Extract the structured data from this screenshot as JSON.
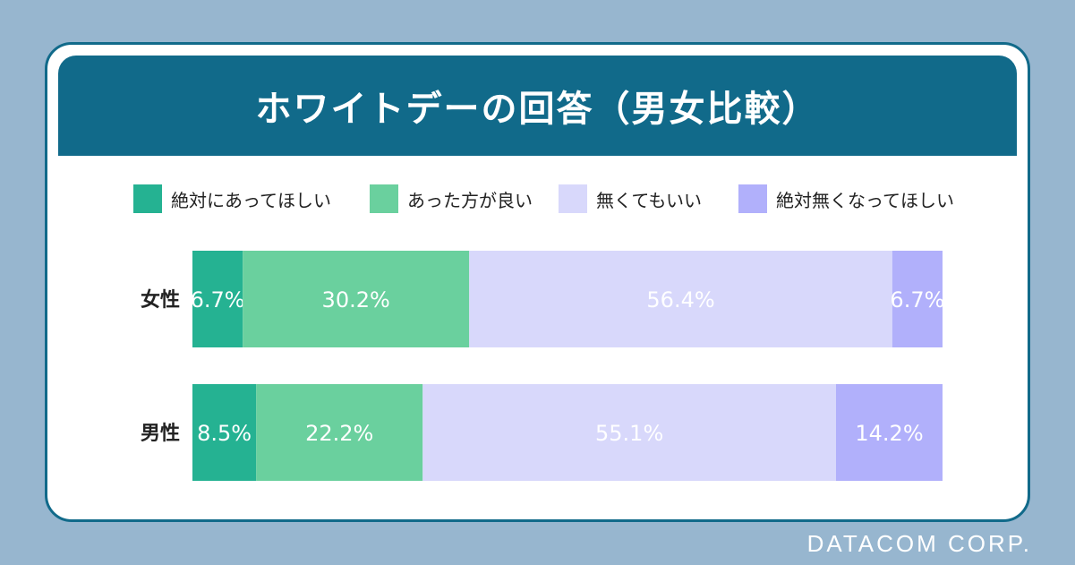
{
  "title": "ホワイトデーの回答（男女比較）",
  "footer": "DATACOM CORP.",
  "legend": [
    {
      "label": "絶対にあってほしい",
      "color": "#25b292"
    },
    {
      "label": "あった方が良い",
      "color": "#6ad09e"
    },
    {
      "label": "無くてもいい",
      "color": "#d8d8fb"
    },
    {
      "label": "絶対無くなってほしい",
      "color": "#b1b0fb"
    }
  ],
  "chart_data": {
    "type": "bar",
    "orientation": "horizontal",
    "stacked": true,
    "normalized": true,
    "categories": [
      "女性",
      "男性"
    ],
    "series": [
      {
        "name": "絶対にあってほしい",
        "values": [
          6.7,
          8.5
        ],
        "labels": [
          "6.7%",
          "8.5%"
        ]
      },
      {
        "name": "あった方が良い",
        "values": [
          30.2,
          22.2
        ],
        "labels": [
          "30.2%",
          "22.2%"
        ]
      },
      {
        "name": "無くてもいい",
        "values": [
          56.4,
          55.1
        ],
        "labels": [
          "56.4%",
          "55.1%"
        ]
      },
      {
        "name": "絶対無くなってほしい",
        "values": [
          6.7,
          14.2
        ],
        "labels": [
          "6.7%",
          "14.2%"
        ]
      }
    ],
    "title": "ホワイトデーの回答（男女比較）",
    "legend_position": "top",
    "grid": false
  }
}
